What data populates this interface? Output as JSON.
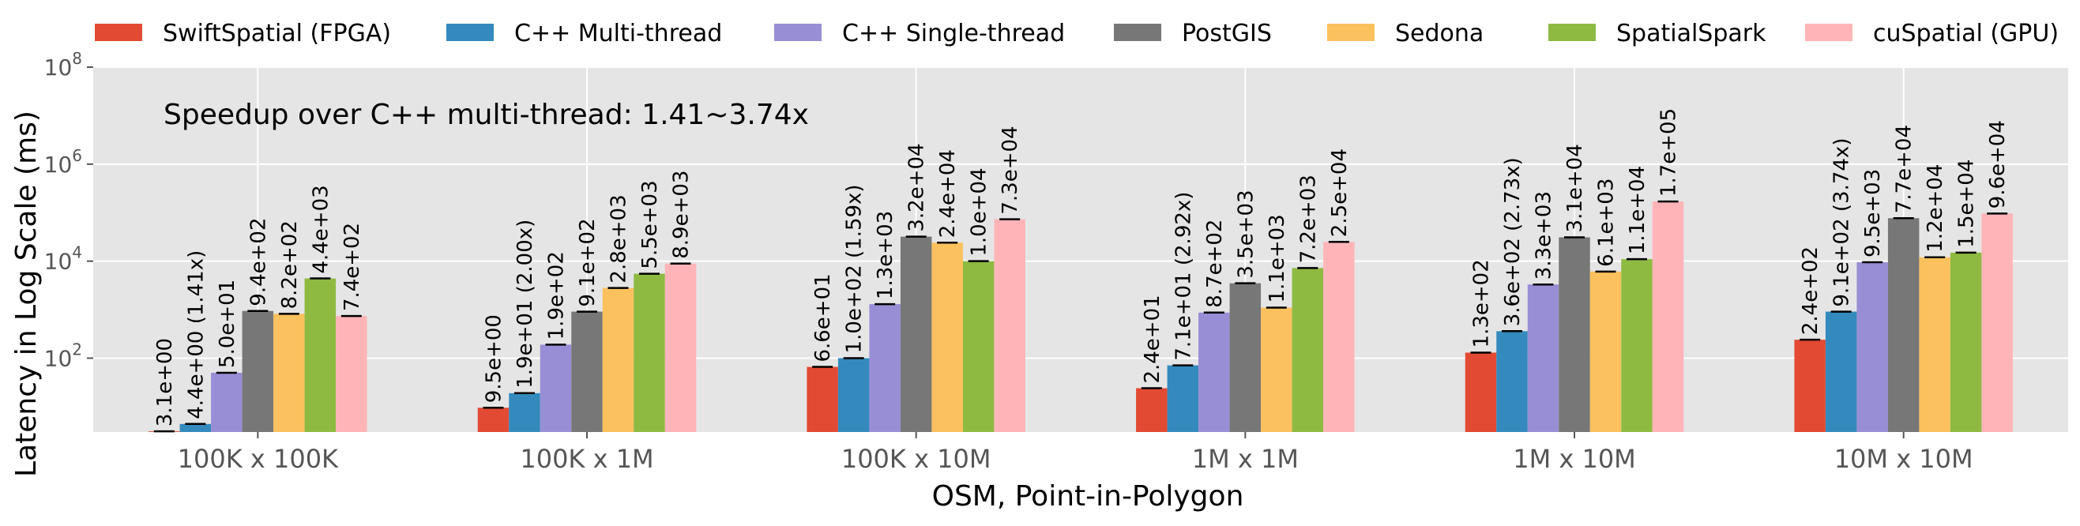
{
  "chart_data": {
    "type": "bar",
    "xlabel": "OSM, Point-in-Polygon",
    "ylabel": "Latency in Log Scale (ms)",
    "yscale": "log",
    "ylim": [
      3,
      100000000
    ],
    "yticks": [
      100,
      10000,
      1000000,
      100000000
    ],
    "ytick_labels": [
      {
        "base": "10",
        "exp": "2"
      },
      {
        "base": "10",
        "exp": "4"
      },
      {
        "base": "10",
        "exp": "6"
      },
      {
        "base": "10",
        "exp": "8"
      }
    ],
    "grid": true,
    "legend_position": "top",
    "annotation": "Speedup over C++ multi-thread: 1.41~3.74x",
    "categories": [
      "100K x 100K",
      "100K x 1M",
      "100K x 10M",
      "1M x 1M",
      "1M x 10M",
      "10M x 10M"
    ],
    "series": [
      {
        "name": "SwiftSpatial (FPGA)",
        "color": "#E24A33",
        "values": [
          3.1,
          9.5,
          66,
          24,
          130,
          240
        ],
        "labels": [
          "3.1e+00",
          "9.5e+00",
          "6.6e+01",
          "2.4e+01",
          "1.3e+02",
          "2.4e+02"
        ]
      },
      {
        "name": "C++ Multi-thread",
        "color": "#348ABD",
        "values": [
          4.4,
          19,
          100,
          71,
          360,
          910
        ],
        "labels": [
          "4.4e+00 (1.41x)",
          "1.9e+01 (2.00x)",
          "1.0e+02 (1.59x)",
          "7.1e+01 (2.92x)",
          "3.6e+02 (2.73x)",
          "9.1e+02 (3.74x)"
        ]
      },
      {
        "name": "C++ Single-thread",
        "color": "#988ED5",
        "values": [
          50,
          190,
          1300,
          870,
          3300,
          9500
        ],
        "labels": [
          "5.0e+01",
          "1.9e+02",
          "1.3e+03",
          "8.7e+02",
          "3.3e+03",
          "9.5e+03"
        ]
      },
      {
        "name": "PostGIS",
        "color": "#777777",
        "values": [
          940,
          910,
          32000,
          3500,
          31000,
          77000
        ],
        "labels": [
          "9.4e+02",
          "9.1e+02",
          "3.2e+04",
          "3.5e+03",
          "3.1e+04",
          "7.7e+04"
        ]
      },
      {
        "name": "Sedona",
        "color": "#FBC15E",
        "values": [
          820,
          2800,
          24000,
          1100,
          6100,
          12000
        ],
        "labels": [
          "8.2e+02",
          "2.8e+03",
          "2.4e+04",
          "1.1e+03",
          "6.1e+03",
          "1.2e+04"
        ]
      },
      {
        "name": "SpatialSpark",
        "color": "#8EBA42",
        "values": [
          4400,
          5500,
          10000,
          7200,
          11000,
          15000
        ],
        "labels": [
          "4.4e+03",
          "5.5e+03",
          "1.0e+04",
          "7.2e+03",
          "1.1e+04",
          "1.5e+04"
        ]
      },
      {
        "name": "cuSpatial (GPU)",
        "color": "#FFB5B8",
        "values": [
          740,
          8900,
          73000,
          25000,
          170000,
          96000
        ],
        "labels": [
          "7.4e+02",
          "8.9e+03",
          "7.3e+04",
          "2.5e+04",
          "1.7e+05",
          "9.6e+04"
        ]
      }
    ]
  }
}
